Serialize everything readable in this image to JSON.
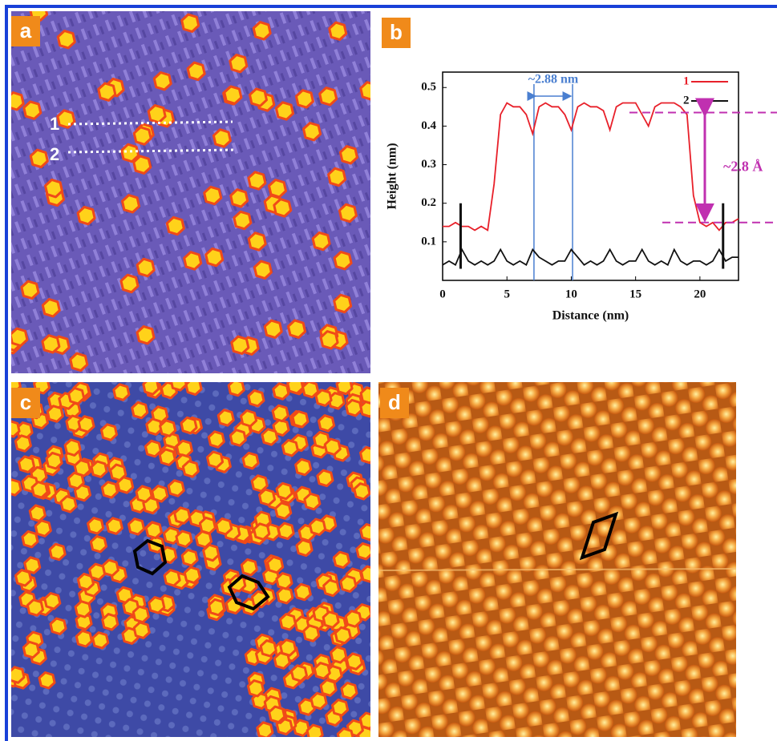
{
  "panels": {
    "a": "a",
    "b": "b",
    "c": "c",
    "d": "d"
  },
  "line_labels": [
    "1",
    "2"
  ],
  "chart_data": {
    "type": "line",
    "xlabel": "Distance (nm)",
    "ylabel": "Height (nm)",
    "x": [
      0,
      0.5,
      1,
      1.5,
      2,
      2.5,
      3,
      3.5,
      4,
      4.5,
      5,
      5.5,
      6,
      6.5,
      7,
      7.5,
      8,
      8.5,
      9,
      9.5,
      10,
      10.5,
      11,
      11.5,
      12,
      12.5,
      13,
      13.5,
      14,
      14.5,
      15,
      15.5,
      16,
      16.5,
      17,
      17.5,
      18,
      18.5,
      19,
      19.5,
      20,
      20.5,
      21,
      21.5,
      22,
      22.5,
      23
    ],
    "series": [
      {
        "name": "1",
        "color": "#e8202a",
        "values": [
          0.14,
          0.14,
          0.15,
          0.14,
          0.14,
          0.13,
          0.14,
          0.13,
          0.25,
          0.43,
          0.46,
          0.45,
          0.45,
          0.43,
          0.38,
          0.45,
          0.46,
          0.45,
          0.45,
          0.43,
          0.39,
          0.45,
          0.46,
          0.45,
          0.45,
          0.44,
          0.39,
          0.45,
          0.46,
          0.46,
          0.46,
          0.43,
          0.4,
          0.45,
          0.46,
          0.46,
          0.46,
          0.45,
          0.43,
          0.22,
          0.15,
          0.14,
          0.15,
          0.13,
          0.15,
          0.15,
          0.16
        ]
      },
      {
        "name": "2",
        "color": "#111111",
        "values": [
          0.04,
          0.05,
          0.04,
          0.08,
          0.05,
          0.04,
          0.05,
          0.04,
          0.05,
          0.08,
          0.05,
          0.04,
          0.05,
          0.04,
          0.08,
          0.06,
          0.05,
          0.04,
          0.05,
          0.05,
          0.08,
          0.06,
          0.04,
          0.05,
          0.04,
          0.05,
          0.08,
          0.05,
          0.04,
          0.05,
          0.05,
          0.08,
          0.05,
          0.04,
          0.05,
          0.04,
          0.08,
          0.05,
          0.04,
          0.05,
          0.05,
          0.04,
          0.05,
          0.08,
          0.05,
          0.06,
          0.06
        ]
      }
    ],
    "xlim": [
      0,
      23
    ],
    "ylim": [
      0,
      0.54
    ],
    "xticks": [
      0,
      5,
      10,
      15,
      20
    ],
    "yticks": [
      0.1,
      0.2,
      0.3,
      0.4,
      0.5
    ],
    "markers": {
      "x": [
        1.4,
        21.8
      ],
      "bottom": 0.03,
      "top": 0.2,
      "color": "#111111"
    },
    "spacing": {
      "label": "~2.88 nm",
      "x": [
        7.1,
        10.1
      ],
      "color": "#4a7fd0"
    },
    "step": {
      "label": "~2.8 Å",
      "from": 0.15,
      "to": 0.435,
      "color": "#c030b0"
    },
    "legend": "upper right"
  }
}
